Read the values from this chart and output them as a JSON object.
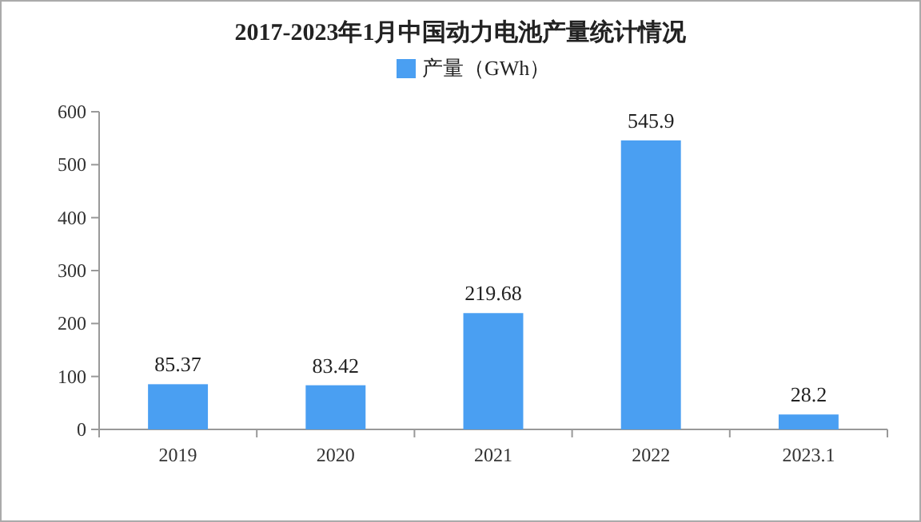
{
  "chart_data": {
    "type": "bar",
    "title": "2017-2023年1月中国动力电池产量统计情况",
    "categories": [
      "2019",
      "2020",
      "2021",
      "2022",
      "2023.1"
    ],
    "series": [
      {
        "name": "产量（GWh）",
        "color": "#4a9ff2",
        "values": [
          85.37,
          83.42,
          219.68,
          545.9,
          28.2
        ]
      }
    ],
    "ylim": [
      0,
      600
    ],
    "yticks": [
      0,
      100,
      200,
      300,
      400,
      500,
      600
    ],
    "data_labels": true,
    "legend": "top"
  }
}
